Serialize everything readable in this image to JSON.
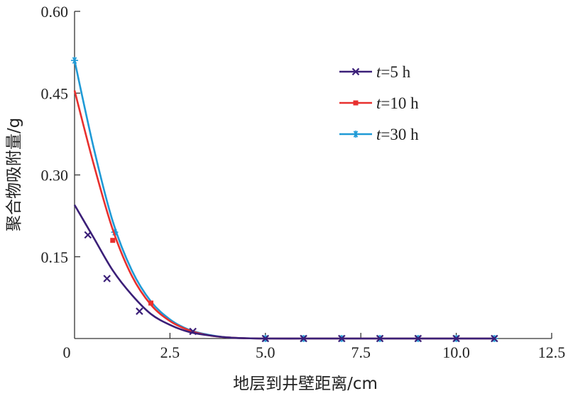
{
  "chart_data": {
    "type": "line",
    "title": "",
    "xlabel": "地层到井壁距离/cm",
    "ylabel": "聚合物吸附量/g",
    "xlim": [
      0,
      12.5
    ],
    "ylim": [
      0,
      0.6
    ],
    "x_ticks": [
      0,
      2.5,
      5.0,
      7.5,
      10.0,
      12.5
    ],
    "x_tick_labels": [
      "0",
      "2.5",
      "5.0",
      "7.5",
      "10.0",
      "12.5"
    ],
    "y_ticks": [
      0.15,
      0.3,
      0.45,
      0.6
    ],
    "y_tick_labels": [
      "0.15",
      "0.30",
      "0.45",
      "0.60"
    ],
    "grid": false,
    "legend_position": "top-right",
    "series": [
      {
        "name": "t=5 h",
        "label_var": "t",
        "label_rest": "=5 h",
        "color": "#3b1f78",
        "marker": "plus",
        "curve_x": [
          0,
          0.5,
          1.0,
          1.5,
          2.0,
          2.5,
          3.0,
          3.5,
          4.0,
          4.5,
          5.0,
          6.0,
          7.0,
          8.0,
          9.0,
          10.0,
          11.0
        ],
        "curve_y": [
          0.245,
          0.185,
          0.125,
          0.08,
          0.045,
          0.025,
          0.012,
          0.006,
          0.002,
          0.0005,
          0,
          0,
          0,
          0,
          0,
          0,
          0
        ],
        "marker_x": [
          0.35,
          0.85,
          1.7,
          3.1,
          5.0,
          6.0,
          7.0,
          8.0,
          9.0,
          10.0,
          11.0
        ],
        "marker_y": [
          0.19,
          0.11,
          0.05,
          0.013,
          0,
          0,
          0,
          0,
          0,
          0,
          0
        ]
      },
      {
        "name": "t=10 h",
        "label_var": "t",
        "label_rest": "=10 h",
        "color": "#e8302e",
        "marker": "square",
        "curve_x": [
          0,
          0.5,
          1.0,
          1.5,
          2.0,
          2.5,
          3.0,
          3.5,
          4.0,
          4.5,
          5.0,
          6.0,
          7.0,
          8.0,
          9.0,
          10.0,
          11.0
        ],
        "curve_y": [
          0.455,
          0.32,
          0.2,
          0.115,
          0.062,
          0.032,
          0.015,
          0.006,
          0.002,
          0.0005,
          0,
          0,
          0,
          0,
          0,
          0,
          0
        ],
        "marker_x": [
          1.0,
          2.0
        ],
        "marker_y": [
          0.18,
          0.065
        ]
      },
      {
        "name": "t=30 h",
        "label_var": "t",
        "label_rest": "=30 h",
        "color": "#1f9ad6",
        "marker": "asterisk",
        "curve_x": [
          0,
          0.5,
          1.0,
          1.5,
          2.0,
          2.5,
          3.0,
          3.5,
          4.0,
          4.5,
          5.0,
          6.0,
          7.0,
          8.0,
          9.0,
          10.0,
          11.0
        ],
        "curve_y": [
          0.51,
          0.35,
          0.215,
          0.125,
          0.068,
          0.035,
          0.016,
          0.007,
          0.002,
          0.0005,
          0,
          0,
          0,
          0,
          0,
          0,
          0
        ],
        "marker_x": [
          0,
          1.05,
          5.0,
          6.0,
          7.0,
          8.0,
          9.0,
          10.0,
          11.0
        ],
        "marker_y": [
          0.51,
          0.195,
          0,
          0,
          0,
          0,
          0,
          0,
          0
        ]
      }
    ]
  }
}
